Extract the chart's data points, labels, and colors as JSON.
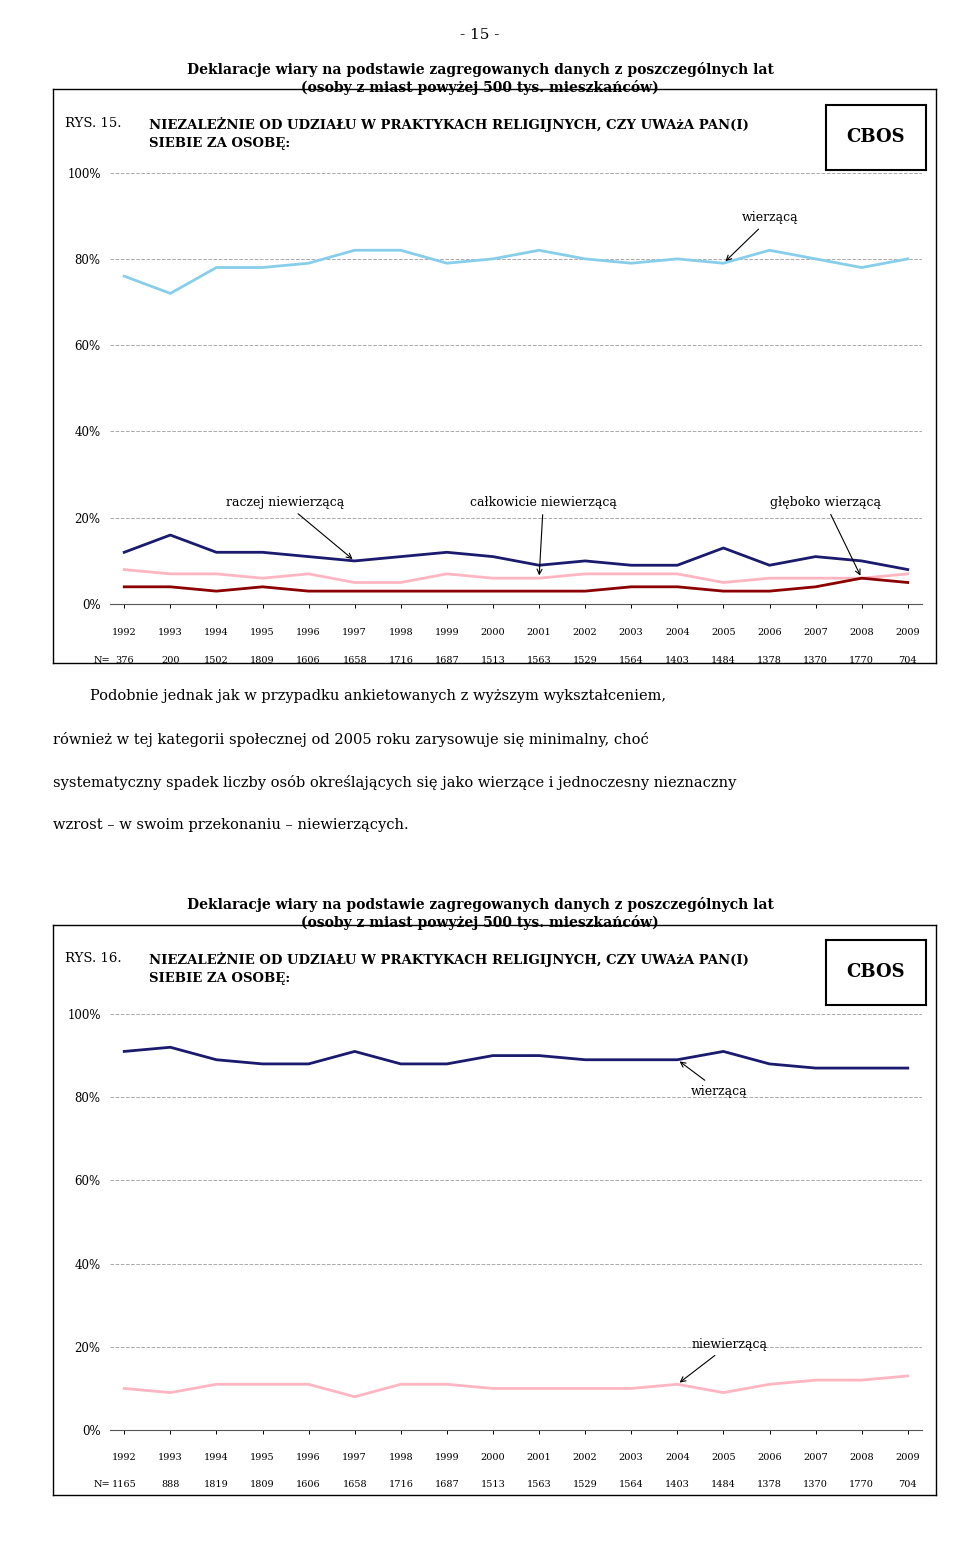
{
  "page_number": "- 15 -",
  "chart_title_line1": "Deklaracje wiary na podstawie zagregowanych danych z poszczególnych lat",
  "chart_title_line2": "(osoby z miast powyżej 500 tys. mieszkańców)",
  "cbos_label": "CBOS",
  "rys15_label": "RYS. 15.",
  "rys16_label": "RYS. 16.",
  "years": [
    1992,
    1993,
    1994,
    1995,
    1996,
    1997,
    1998,
    1999,
    2000,
    2001,
    2002,
    2003,
    2004,
    2005,
    2006,
    2007,
    2008,
    2009
  ],
  "chart1_n": [
    376,
    200,
    1502,
    1809,
    1606,
    1658,
    1716,
    1687,
    1513,
    1563,
    1529,
    1564,
    1403,
    1484,
    1378,
    1370,
    1770,
    704
  ],
  "chart2_n": [
    1165,
    888,
    1819,
    1809,
    1606,
    1658,
    1716,
    1687,
    1513,
    1563,
    1529,
    1564,
    1403,
    1484,
    1378,
    1370,
    1770,
    704
  ],
  "chart1_wierzaca": [
    76,
    72,
    78,
    78,
    79,
    82,
    82,
    79,
    80,
    82,
    80,
    79,
    80,
    79,
    82,
    80,
    78,
    80
  ],
  "chart1_raczej_niewierzaca": [
    12,
    16,
    12,
    12,
    11,
    10,
    11,
    12,
    11,
    9,
    10,
    9,
    9,
    13,
    9,
    11,
    10,
    8
  ],
  "chart1_calkowicie_niewierzaca": [
    8,
    7,
    7,
    6,
    7,
    5,
    5,
    7,
    6,
    6,
    7,
    7,
    7,
    5,
    6,
    6,
    6,
    7
  ],
  "chart1_gleboko_wierzaca": [
    4,
    4,
    3,
    4,
    3,
    3,
    3,
    3,
    3,
    3,
    3,
    4,
    4,
    3,
    3,
    4,
    6,
    5
  ],
  "chart2_wierzaca": [
    91,
    92,
    89,
    88,
    88,
    91,
    88,
    88,
    90,
    90,
    89,
    89,
    89,
    91,
    88,
    87,
    87,
    87
  ],
  "chart2_niewierzaca": [
    10,
    9,
    11,
    11,
    11,
    8,
    11,
    11,
    10,
    10,
    10,
    10,
    11,
    9,
    11,
    12,
    12,
    13
  ],
  "color_wierzaca_light": "#87CEEB",
  "color_raczej_niewierzaca": "#1a1a6e",
  "color_calkowicie_niewierzaca": "#FFB6C1",
  "color_gleboko_wierzaca": "#8B0000",
  "color_wierzaca_dark": "#1a1a6e",
  "color_niewierzaca": "#FFB6C1",
  "background_color": "#ffffff"
}
